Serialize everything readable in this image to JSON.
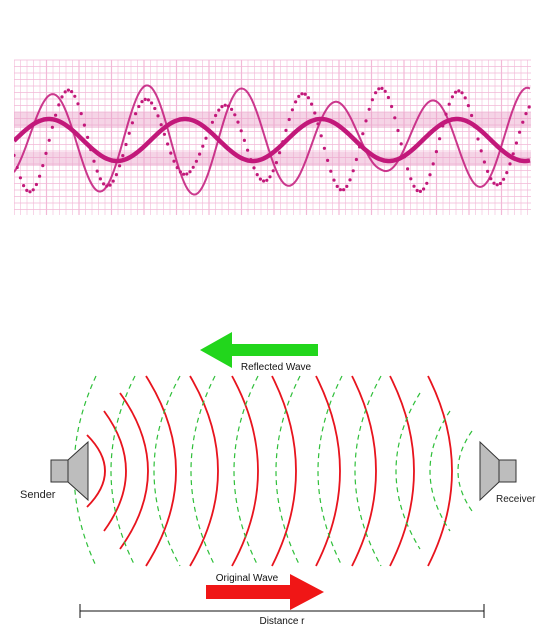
{
  "colors": {
    "wave_primary": "#c2187a",
    "grid_pink": "#f2b9d7",
    "band_pink": "#e8a0c8",
    "original_wave": "#e8141e",
    "reflected_wave": "#2fbf3a",
    "arrow_reflected": "#22d61c",
    "arrow_original": "#f01616",
    "speaker_fill": "#bdbdbd"
  },
  "icons": {
    "sender": "speaker-icon",
    "receiver": "speaker-icon"
  },
  "labels": {
    "sender": "Sender",
    "receiver": "Receiver",
    "reflected_wave": "Reflected Wave",
    "original_wave": "Original Wave",
    "distance": "Distance r"
  }
}
